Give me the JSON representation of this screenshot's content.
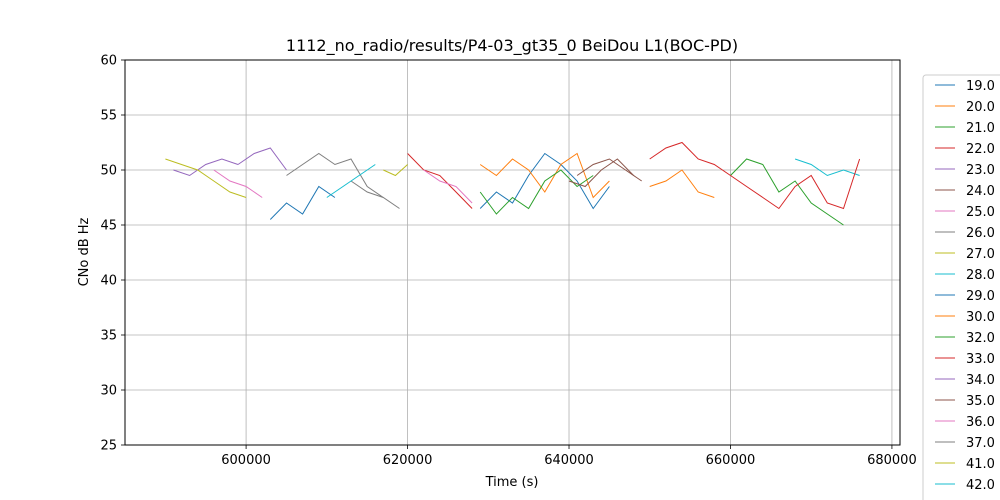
{
  "chart_data": {
    "type": "line",
    "title": "1112_no_radio/results/P4-03_gt35_0 BeiDou L1(BOC-PD)",
    "xlabel": "Time (s)",
    "ylabel": "CNo dB Hz",
    "xlim": [
      585000,
      681000
    ],
    "ylim": [
      25,
      60
    ],
    "xticks": [
      600000,
      620000,
      640000,
      660000,
      680000
    ],
    "xtick_labels": [
      "600000",
      "620000",
      "640000",
      "660000",
      "680000"
    ],
    "yticks": [
      25,
      30,
      35,
      40,
      45,
      50,
      55,
      60
    ],
    "ytick_labels": [
      "25",
      "30",
      "35",
      "40",
      "45",
      "50",
      "55",
      "60"
    ],
    "grid": true,
    "legend_position": "right, outside plot (clipped)",
    "series": [
      {
        "name": "19.0",
        "color": "#1f77b4",
        "x": [
          629000,
          631000,
          633000,
          635000,
          637000,
          639000,
          641000,
          643000,
          645000
        ],
        "y": [
          46.5,
          48.0,
          47.0,
          49.5,
          51.5,
          50.5,
          49.0,
          46.5,
          48.5
        ]
      },
      {
        "name": "20.0",
        "color": "#ff7f0e",
        "x": [
          629000,
          631000,
          633000,
          635000,
          637000,
          639000,
          641000,
          643000,
          645000
        ],
        "y": [
          50.5,
          49.5,
          51.0,
          50.0,
          48.0,
          50.5,
          51.5,
          47.5,
          49.0
        ]
      },
      {
        "name": "21.0",
        "color": "#2ca02c",
        "x": [
          629000,
          631000,
          633000,
          635000,
          637000,
          639000,
          641000,
          643000
        ],
        "y": [
          48.0,
          46.0,
          47.5,
          46.5,
          49.0,
          50.0,
          48.5,
          49.5
        ]
      },
      {
        "name": "22.0",
        "color": "#d62728",
        "x": [
          620000,
          622000,
          624000,
          626000,
          628000
        ],
        "y": [
          51.5,
          50.0,
          49.5,
          48.0,
          46.5
        ]
      },
      {
        "name": "23.0",
        "color": "#9467bd",
        "x": [
          591000,
          593000,
          595000,
          597000,
          599000
        ],
        "y": [
          50.0,
          49.5,
          50.5,
          51.0,
          50.5
        ]
      },
      {
        "name": "24.0",
        "color": "#8c564b",
        "x": [
          641000,
          643000,
          645000,
          647000,
          649000
        ],
        "y": [
          49.5,
          50.5,
          51.0,
          50.0,
          49.0
        ]
      },
      {
        "name": "25.0",
        "color": "#e377c2",
        "x": [
          622000,
          624000,
          626000,
          628000
        ],
        "y": [
          50.0,
          49.0,
          48.5,
          47.0
        ]
      },
      {
        "name": "26.0",
        "color": "#7f7f7f",
        "x": [
          613000,
          615000,
          617000,
          619000
        ],
        "y": [
          49.0,
          48.0,
          47.5,
          46.5
        ]
      },
      {
        "name": "27.0",
        "color": "#bcbd22",
        "x": [
          617000,
          618500,
          620000
        ],
        "y": [
          50.0,
          49.5,
          50.5
        ]
      },
      {
        "name": "28.0",
        "color": "#17becf",
        "x": [
          668000,
          670000,
          672000,
          674000,
          676000
        ],
        "y": [
          51.0,
          50.5,
          49.5,
          50.0,
          49.5
        ]
      },
      {
        "name": "29.0",
        "color": "#1f77b4",
        "x": [
          603000,
          605000,
          607000,
          609000,
          611000
        ],
        "y": [
          45.5,
          47.0,
          46.0,
          48.5,
          47.5
        ]
      },
      {
        "name": "30.0",
        "color": "#ff7f0e",
        "x": [
          650000,
          652000,
          654000,
          656000,
          658000
        ],
        "y": [
          48.5,
          49.0,
          50.0,
          48.0,
          47.5
        ]
      },
      {
        "name": "32.0",
        "color": "#2ca02c",
        "x": [
          660000,
          662000,
          664000,
          666000,
          668000,
          670000,
          672000,
          674000
        ],
        "y": [
          49.5,
          51.0,
          50.5,
          48.0,
          49.0,
          47.0,
          46.0,
          45.0
        ]
      },
      {
        "name": "33.0",
        "color": "#d62728",
        "x": [
          650000,
          652000,
          654000,
          656000,
          658000,
          660000,
          662000,
          664000,
          666000,
          668000,
          670000,
          672000,
          674000,
          676000
        ],
        "y": [
          51.0,
          52.0,
          52.5,
          51.0,
          50.5,
          49.5,
          48.5,
          47.5,
          46.5,
          48.5,
          49.5,
          47.0,
          46.5,
          51.0
        ]
      },
      {
        "name": "34.0",
        "color": "#9467bd",
        "x": [
          599000,
          601000,
          603000,
          605000
        ],
        "y": [
          50.5,
          51.5,
          52.0,
          50.0
        ]
      },
      {
        "name": "35.0",
        "color": "#8c564b",
        "x": [
          640000,
          642000,
          644000,
          646000,
          648000
        ],
        "y": [
          49.0,
          48.5,
          50.0,
          51.0,
          49.5
        ]
      },
      {
        "name": "36.0",
        "color": "#e377c2",
        "x": [
          596000,
          598000,
          600000,
          602000
        ],
        "y": [
          50.0,
          49.0,
          48.5,
          47.5
        ]
      },
      {
        "name": "37.0",
        "color": "#7f7f7f",
        "x": [
          605000,
          607000,
          609000,
          611000,
          613000,
          615000,
          617000
        ],
        "y": [
          49.5,
          50.5,
          51.5,
          50.5,
          51.0,
          48.5,
          47.5
        ]
      },
      {
        "name": "41.0",
        "color": "#bcbd22",
        "x": [
          590000,
          592000,
          594000,
          596000,
          598000,
          600000
        ],
        "y": [
          51.0,
          50.5,
          50.0,
          49.0,
          48.0,
          47.5
        ]
      },
      {
        "name": "42.0",
        "color": "#17becf",
        "x": [
          610000,
          612000,
          614000,
          616000
        ],
        "y": [
          47.5,
          48.5,
          49.5,
          50.5
        ]
      }
    ]
  }
}
